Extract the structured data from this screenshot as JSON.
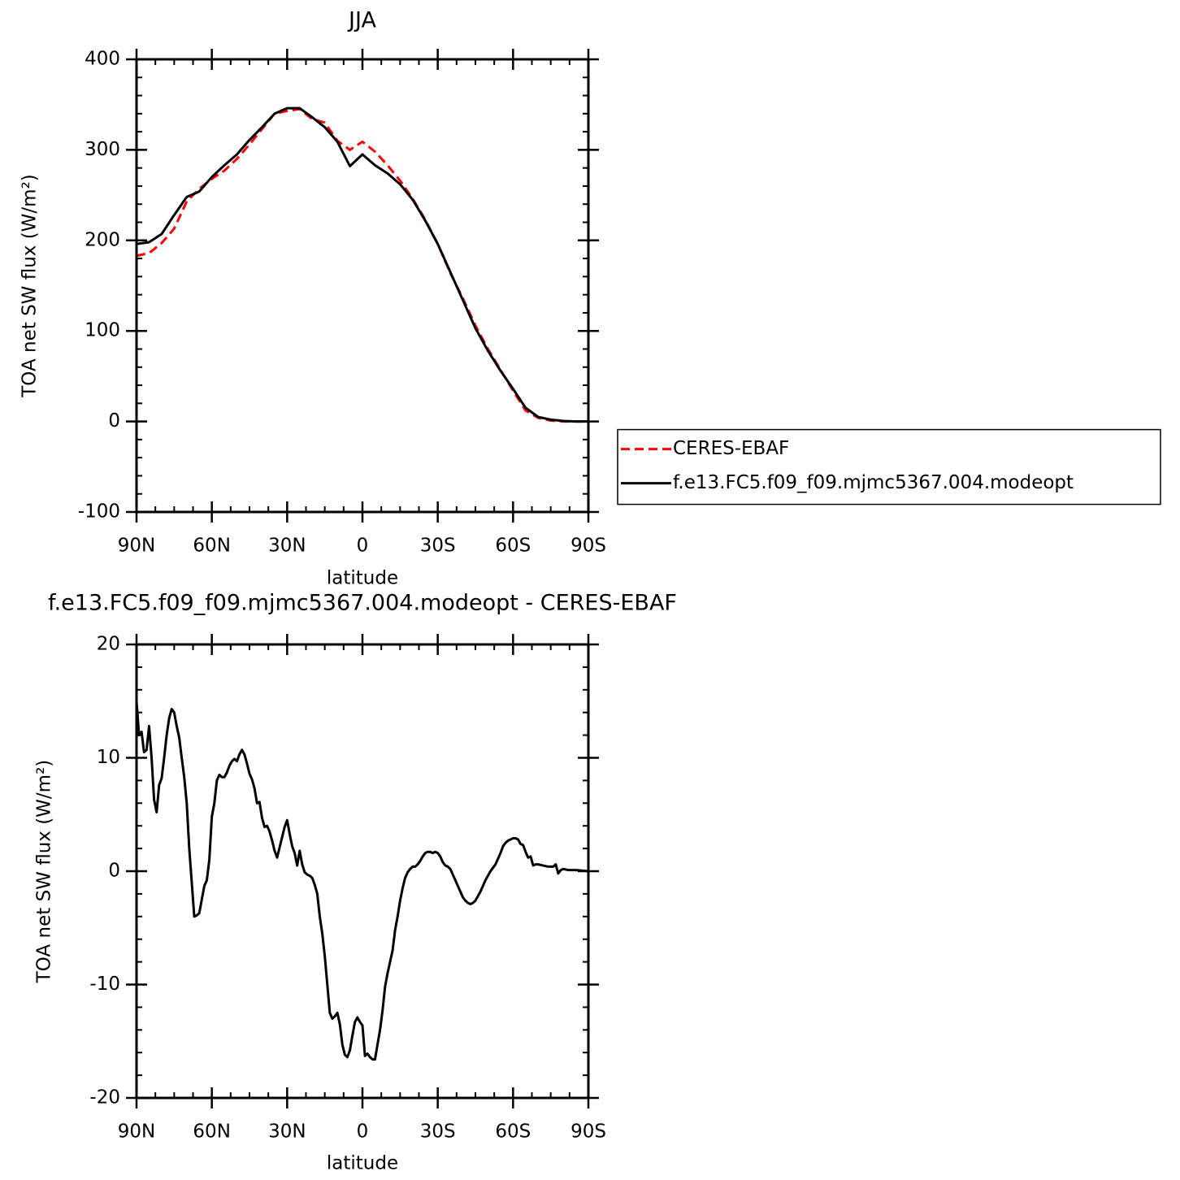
{
  "chart_data": [
    {
      "type": "line",
      "title": "JJA",
      "xlabel": "latitude",
      "ylabel": "TOA net SW flux (W/m²)",
      "x": [
        90,
        85,
        80,
        75,
        70,
        65,
        60,
        55,
        50,
        45,
        40,
        35,
        30,
        25,
        20,
        15,
        10,
        5,
        0,
        -5,
        -10,
        -15,
        -20,
        -25,
        -30,
        -35,
        -40,
        -45,
        -50,
        -55,
        -60,
        -65,
        -70,
        -75,
        -80,
        -85,
        -90
      ],
      "series": [
        {
          "name": "CERES-EBAF",
          "color": "#ff0000",
          "dashed": true,
          "values": [
            183,
            186,
            197,
            213,
            243,
            257,
            268,
            277,
            290,
            306,
            323,
            340,
            343,
            345,
            334,
            330,
            310,
            300,
            309,
            298,
            283,
            266,
            246,
            223,
            196,
            164,
            136,
            106,
            80,
            57,
            34,
            12,
            4,
            1,
            0,
            0,
            0
          ]
        },
        {
          "name": "f.e13.FC5.f09_f09.mjmc5367.004.modeopt",
          "color": "#000000",
          "dashed": false,
          "values": [
            196,
            198,
            207,
            228,
            248,
            254,
            270,
            283,
            295,
            311,
            325,
            340,
            346,
            346,
            336,
            325,
            309,
            282,
            295,
            283,
            274,
            262,
            245,
            222,
            196,
            165,
            134,
            103,
            78,
            56,
            36,
            15,
            5,
            2,
            0.5,
            0,
            0
          ]
        }
      ],
      "xlim": [
        90,
        -90
      ],
      "xticks": [
        {
          "value": 90,
          "label": "90N"
        },
        {
          "value": 60,
          "label": "60N"
        },
        {
          "value": 30,
          "label": "30N"
        },
        0,
        {
          "value": -30,
          "label": "30S"
        },
        {
          "value": -60,
          "label": "60S"
        },
        {
          "value": -90,
          "label": "90S"
        }
      ],
      "ylim": [
        -100,
        400
      ],
      "yticks": [
        -100,
        0,
        100,
        200,
        300,
        400
      ],
      "legend": "right"
    },
    {
      "type": "line",
      "title": "f.e13.FC5.f09_f09.mjmc5367.004.modeopt - CERES-EBAF",
      "xlabel": "latitude",
      "ylabel": "TOA net SW flux (W/m²)",
      "x": [
        90,
        89,
        88,
        87,
        86,
        85,
        84,
        83,
        82,
        81,
        80,
        79,
        78,
        77,
        76,
        75,
        74,
        73,
        72,
        71,
        70,
        69,
        68,
        67,
        66,
        65,
        64,
        63,
        62,
        61,
        60,
        59,
        58,
        57,
        56,
        55,
        54,
        53,
        52,
        51,
        50,
        49,
        48,
        47,
        46,
        45,
        44,
        43,
        42,
        41,
        40,
        39,
        38,
        37,
        36,
        35,
        34,
        33,
        32,
        31,
        30,
        29,
        28,
        27,
        26,
        25,
        24,
        23,
        22,
        21,
        20,
        19,
        18,
        17,
        16,
        15,
        14,
        13,
        12,
        11,
        10,
        9,
        8,
        7,
        6,
        5,
        4,
        3,
        2,
        1,
        0,
        -1,
        -2,
        -3,
        -4,
        -5,
        -6,
        -7,
        -8,
        -9,
        -10,
        -11,
        -12,
        -13,
        -14,
        -15,
        -16,
        -17,
        -18,
        -19,
        -20,
        -21,
        -22,
        -23,
        -24,
        -25,
        -26,
        -27,
        -28,
        -29,
        -30,
        -31,
        -32,
        -33,
        -34,
        -35,
        -36,
        -37,
        -38,
        -39,
        -40,
        -41,
        -42,
        -43,
        -44,
        -45,
        -46,
        -47,
        -48,
        -49,
        -50,
        -51,
        -52,
        -53,
        -54,
        -55,
        -56,
        -57,
        -58,
        -59,
        -60,
        -61,
        -62,
        -63,
        -64,
        -65,
        -66,
        -67,
        -68,
        -69,
        -70,
        -72,
        -74,
        -76,
        -77,
        -78,
        -79,
        -80,
        -82,
        -85,
        -90
      ],
      "series": [
        {
          "color": "#000000",
          "dashed": false,
          "values": [
            15,
            12,
            12.3,
            10.5,
            10.7,
            12.8,
            10,
            6.3,
            5.2,
            7.6,
            8.2,
            10,
            12,
            13.5,
            14.3,
            14,
            12.8,
            11.8,
            10,
            8.3,
            6,
            2,
            -1,
            -4,
            -3.9,
            -3.7,
            -2.5,
            -1.3,
            -0.8,
            1,
            4.8,
            6,
            8,
            8.5,
            8.3,
            8.3,
            8.7,
            9.3,
            9.7,
            9.9,
            9.7,
            10.3,
            10.7,
            10.3,
            9.5,
            8.6,
            8.1,
            7.3,
            6,
            6.1,
            4.7,
            3.9,
            4,
            3.5,
            2.7,
            1.8,
            1.2,
            2.1,
            3,
            3.9,
            4.5,
            3.3,
            2.2,
            1.6,
            0.5,
            1.8,
            0.6,
            -0.1,
            -0.3,
            -0.4,
            -0.6,
            -1.2,
            -2,
            -4,
            -5.5,
            -7.5,
            -10,
            -12.5,
            -13,
            -12.8,
            -12.5,
            -13.5,
            -15.3,
            -16.2,
            -16.4,
            -15.8,
            -14.5,
            -13.3,
            -12.9,
            -13.3,
            -13.6,
            -16.3,
            -16.1,
            -16.4,
            -16.6,
            -16.6,
            -15.3,
            -14,
            -12.3,
            -10.2,
            -9,
            -8,
            -7,
            -5.2,
            -4,
            -2.6,
            -1.5,
            -0.6,
            -0.1,
            0.2,
            0.4,
            0.4,
            0.6,
            0.9,
            1.3,
            1.6,
            1.7,
            1.7,
            1.6,
            1.7,
            1.6,
            1.3,
            0.8,
            0.5,
            0.4,
            0.2,
            -0.3,
            -0.8,
            -1.3,
            -1.8,
            -2.3,
            -2.6,
            -2.8,
            -2.9,
            -2.8,
            -2.6,
            -2.2,
            -1.8,
            -1.3,
            -0.8,
            -0.4,
            0,
            0.3,
            0.6,
            1.1,
            1.6,
            2.2,
            2.5,
            2.7,
            2.8,
            2.9,
            2.9,
            2.8,
            2.4,
            2.3,
            1.7,
            1.2,
            1.3,
            0.5,
            0.6,
            0.6,
            0.5,
            0.4,
            0.4,
            0.6,
            -0.2,
            0.1,
            0.2,
            0.1,
            0.1,
            0
          ]
        }
      ],
      "xlim": [
        90,
        -90
      ],
      "xticks": [
        {
          "value": 90,
          "label": "90N"
        },
        {
          "value": 60,
          "label": "60N"
        },
        {
          "value": 30,
          "label": "30N"
        },
        0,
        {
          "value": -30,
          "label": "30S"
        },
        {
          "value": -60,
          "label": "60S"
        },
        {
          "value": -90,
          "label": "90S"
        }
      ],
      "ylim": [
        -20,
        20
      ],
      "yticks": [
        -20,
        -10,
        0,
        10,
        20
      ]
    }
  ]
}
